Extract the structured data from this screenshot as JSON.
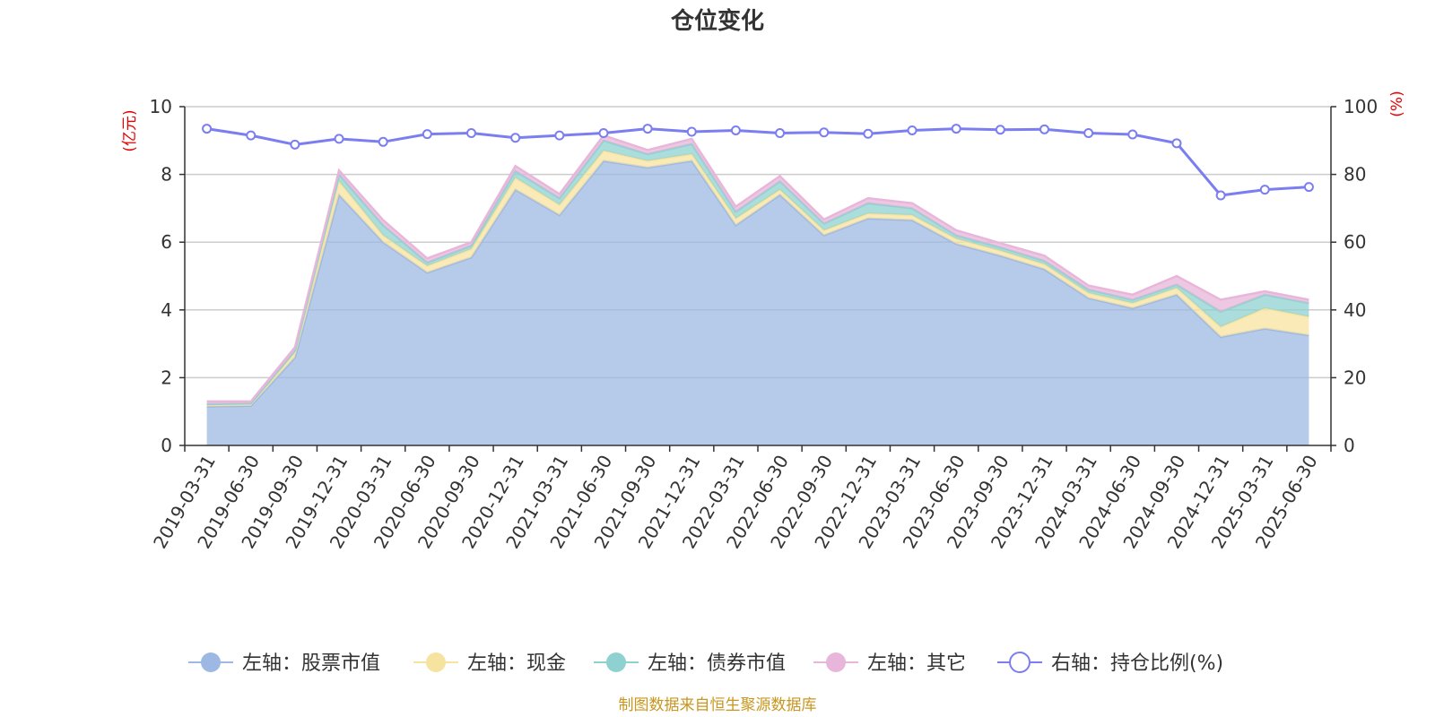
{
  "chart_data": {
    "type": "area",
    "title": "仓位变化",
    "source": "制图数据来自恒生聚源数据库",
    "left_unit": "(亿元)",
    "right_unit": "(%)",
    "ylim_left": [
      0,
      10
    ],
    "ylim_right": [
      0,
      100
    ],
    "yticks_left": [
      "0",
      "2",
      "4",
      "6",
      "8",
      "10"
    ],
    "yticks_right": [
      "0",
      "20",
      "40",
      "60",
      "80",
      "100"
    ],
    "grid": true,
    "legend_position": "bottom",
    "categories": [
      "2019-03-31",
      "2019-06-30",
      "2019-09-30",
      "2019-12-31",
      "2020-03-31",
      "2020-06-30",
      "2020-09-30",
      "2020-12-31",
      "2021-03-31",
      "2021-06-30",
      "2021-09-30",
      "2021-12-31",
      "2022-03-31",
      "2022-06-30",
      "2022-09-30",
      "2022-12-31",
      "2023-03-31",
      "2023-06-30",
      "2023-09-30",
      "2023-12-31",
      "2024-03-31",
      "2024-06-30",
      "2024-09-30",
      "2024-12-31",
      "2025-03-31",
      "2025-06-30"
    ],
    "series": [
      {
        "name": "左轴：股票市值",
        "axis": "left",
        "stacked": true,
        "color": "#9db8e2",
        "values": [
          1.15,
          1.17,
          2.6,
          7.4,
          6.0,
          5.1,
          5.55,
          7.55,
          6.8,
          8.4,
          8.2,
          8.4,
          6.5,
          7.4,
          6.2,
          6.7,
          6.65,
          5.95,
          5.6,
          5.2,
          4.35,
          4.05,
          4.45,
          3.2,
          3.45,
          3.25
        ]
      },
      {
        "name": "左轴：现金",
        "axis": "left",
        "stacked": true,
        "color": "#f7e3a0",
        "values": [
          0.05,
          0.05,
          0.15,
          0.4,
          0.2,
          0.2,
          0.25,
          0.35,
          0.3,
          0.3,
          0.2,
          0.2,
          0.2,
          0.15,
          0.15,
          0.15,
          0.15,
          0.15,
          0.15,
          0.15,
          0.15,
          0.15,
          0.2,
          0.3,
          0.6,
          0.55
        ]
      },
      {
        "name": "左轴：债券市值",
        "axis": "left",
        "stacked": true,
        "color": "#8fd1d1",
        "values": [
          0.02,
          0.02,
          0.05,
          0.2,
          0.3,
          0.1,
          0.1,
          0.2,
          0.2,
          0.3,
          0.2,
          0.3,
          0.2,
          0.25,
          0.2,
          0.3,
          0.2,
          0.1,
          0.1,
          0.1,
          0.1,
          0.1,
          0.1,
          0.45,
          0.4,
          0.4
        ]
      },
      {
        "name": "左轴：其它",
        "axis": "left",
        "stacked": true,
        "color": "#e8b6da",
        "values": [
          0.08,
          0.06,
          0.1,
          0.12,
          0.15,
          0.12,
          0.1,
          0.15,
          0.12,
          0.15,
          0.12,
          0.15,
          0.15,
          0.15,
          0.12,
          0.15,
          0.15,
          0.15,
          0.12,
          0.15,
          0.12,
          0.15,
          0.25,
          0.35,
          0.1,
          0.1
        ]
      },
      {
        "name": "右轴：持仓比例(%)",
        "axis": "right",
        "stacked": false,
        "color": "#7b7ef0",
        "values": [
          93.5,
          91.5,
          88.8,
          90.5,
          89.6,
          91.9,
          92.2,
          90.8,
          91.5,
          92.2,
          93.5,
          92.6,
          93.0,
          92.2,
          92.4,
          92.0,
          93.0,
          93.5,
          93.2,
          93.3,
          92.2,
          91.8,
          89.2,
          73.8,
          75.5,
          76.3
        ]
      }
    ]
  }
}
